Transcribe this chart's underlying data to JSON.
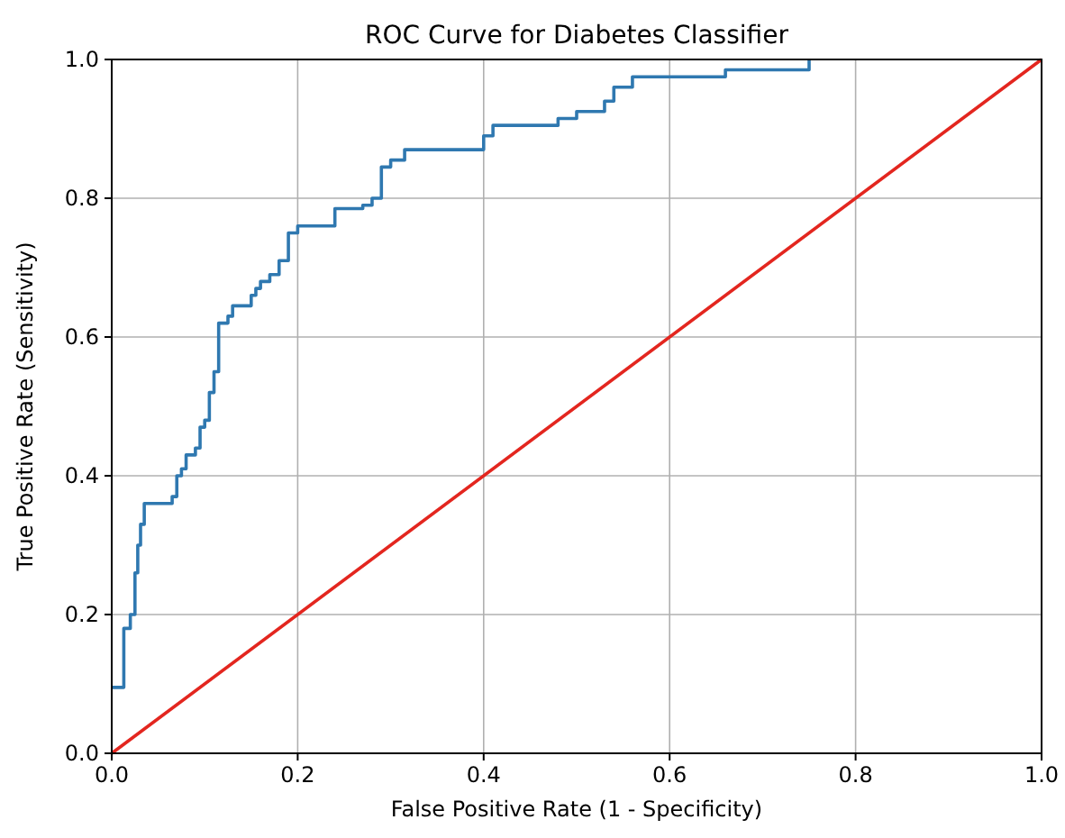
{
  "chart_data": {
    "type": "step",
    "title": "ROC Curve for Diabetes Classifier",
    "xlabel": "False Positive Rate (1 - Specificity)",
    "ylabel": "True Positive Rate (Sensitivity)",
    "xlim": [
      0,
      1
    ],
    "ylim": [
      0,
      1
    ],
    "xticks": [
      {
        "value": 0,
        "label": "0.0"
      },
      {
        "value": 0.2,
        "label": "0.2"
      },
      {
        "value": 0.4,
        "label": "0.4"
      },
      {
        "value": 0.6,
        "label": "0.6"
      },
      {
        "value": 0.8,
        "label": "0.8"
      },
      {
        "value": 1,
        "label": "1.0"
      }
    ],
    "yticks": [
      {
        "value": 0,
        "label": "0.0"
      },
      {
        "value": 0.2,
        "label": "0.2"
      },
      {
        "value": 0.4,
        "label": "0.4"
      },
      {
        "value": 0.6,
        "label": "0.6"
      },
      {
        "value": 0.8,
        "label": "0.8"
      },
      {
        "value": 1,
        "label": "1.0"
      }
    ],
    "grid": true,
    "series": [
      {
        "color": "#2f78b0",
        "x": [
          0,
          0.013,
          0.02,
          0.025,
          0.028,
          0.031,
          0.035,
          0.065,
          0.07,
          0.075,
          0.08,
          0.09,
          0.095,
          0.1,
          0.105,
          0.11,
          0.115,
          0.125,
          0.13,
          0.15,
          0.155,
          0.16,
          0.17,
          0.18,
          0.19,
          0.2,
          0.24,
          0.27,
          0.28,
          0.29,
          0.3,
          0.315,
          0.4,
          0.41,
          0.48,
          0.5,
          0.53,
          0.54,
          0.56,
          0.66,
          0.75
        ],
        "values": [
          0.095,
          0.18,
          0.2,
          0.26,
          0.3,
          0.33,
          0.36,
          0.37,
          0.4,
          0.41,
          0.43,
          0.44,
          0.47,
          0.48,
          0.52,
          0.55,
          0.62,
          0.63,
          0.645,
          0.66,
          0.67,
          0.68,
          0.69,
          0.71,
          0.75,
          0.76,
          0.785,
          0.79,
          0.8,
          0.845,
          0.855,
          0.87,
          0.89,
          0.905,
          0.915,
          0.925,
          0.94,
          0.96,
          0.975,
          0.985,
          1.0
        ]
      },
      {
        "type": "line",
        "color": "#e3261f",
        "x": [
          0,
          1
        ],
        "values": [
          0,
          1
        ]
      }
    ]
  }
}
